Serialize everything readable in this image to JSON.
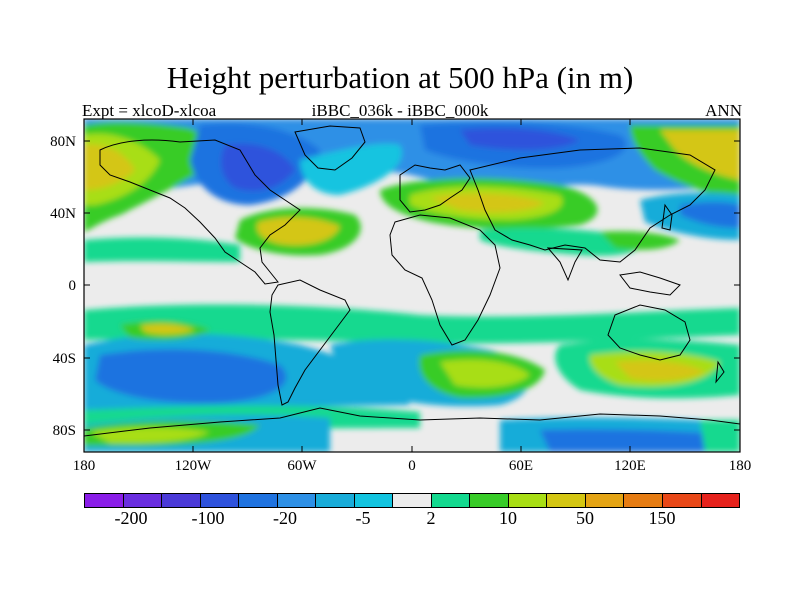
{
  "title": "Height perturbation at 500 hPa (in m)",
  "subtitle_left": "Expt = xlcoD-xlcoa",
  "subtitle_center": "iBBC_036k - iBBC_000k",
  "subtitle_right": "ANN",
  "lat_labels": [
    "80N",
    "40N",
    "0",
    "40S",
    "80S"
  ],
  "lon_labels": [
    "180",
    "120W",
    "60W",
    "0",
    "60E",
    "120E",
    "180"
  ],
  "colorbar": {
    "colors": [
      "#8a1de8",
      "#6a2ee0",
      "#4b3ad8",
      "#2e52dc",
      "#1f73e0",
      "#2d90e6",
      "#19acd9",
      "#12c4e0",
      "#ececec",
      "#13d98f",
      "#38cc28",
      "#a8de14",
      "#d4c612",
      "#e4a414",
      "#e67c12",
      "#e94818",
      "#e6221c"
    ],
    "labels": [
      "-200",
      "-100",
      "-20",
      "-5",
      "2",
      "10",
      "50",
      "150"
    ]
  }
}
